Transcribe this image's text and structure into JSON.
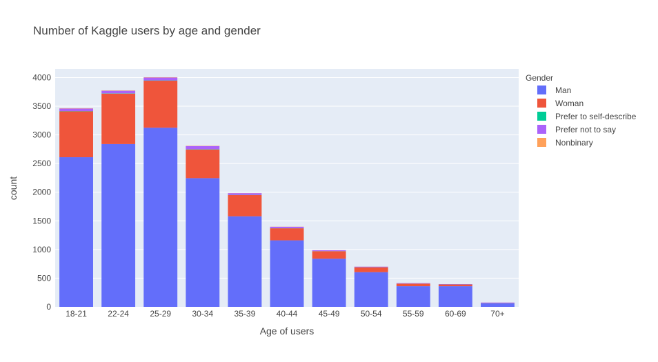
{
  "chart_data": {
    "type": "bar",
    "title": "Number of Kaggle users by age and gender",
    "xlabel": "Age of users",
    "ylabel": "count",
    "ylim": [
      0,
      4150
    ],
    "yticks": [
      0,
      500,
      1000,
      1500,
      2000,
      2500,
      3000,
      3500,
      4000
    ],
    "ytick_labels": [
      "0",
      "500",
      "1000",
      "1500",
      "2000",
      "2500",
      "3000",
      "3500",
      "4000"
    ],
    "categories": [
      "18-21",
      "22-24",
      "25-29",
      "30-34",
      "35-39",
      "40-44",
      "45-49",
      "50-54",
      "55-59",
      "60-69",
      "70+"
    ],
    "stacked": true,
    "grid": true,
    "legend_title": "Gender",
    "legend_position": "right",
    "series": [
      {
        "name": "Man",
        "color": "#636efa",
        "values": [
          2610,
          2840,
          3125,
          2245,
          1580,
          1160,
          840,
          605,
          360,
          360,
          65
        ]
      },
      {
        "name": "Woman",
        "color": "#ef553b",
        "values": [
          800,
          880,
          820,
          500,
          370,
          210,
          130,
          85,
          45,
          30,
          5
        ]
      },
      {
        "name": "Prefer to self-describe",
        "color": "#00cc96",
        "values": [
          5,
          5,
          5,
          5,
          3,
          2,
          2,
          1,
          1,
          1,
          0
        ]
      },
      {
        "name": "Prefer not to say",
        "color": "#ab63fa",
        "values": [
          45,
          45,
          50,
          55,
          30,
          25,
          15,
          10,
          8,
          6,
          5
        ]
      },
      {
        "name": "Nonbinary",
        "color": "#ffa15a",
        "values": [
          5,
          5,
          5,
          5,
          2,
          2,
          1,
          1,
          0,
          0,
          0
        ]
      }
    ]
  }
}
